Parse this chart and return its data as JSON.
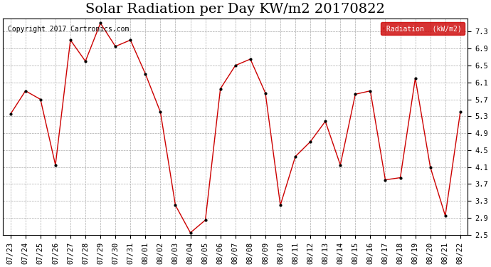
{
  "title": "Solar Radiation per Day KW/m2 20170822",
  "copyright": "Copyright 2017 Cartronics.com",
  "legend_label": "Radiation  (kW/m2)",
  "dates": [
    "07/23",
    "07/24",
    "07/25",
    "07/26",
    "07/27",
    "07/28",
    "07/29",
    "07/30",
    "07/31",
    "08/01",
    "08/02",
    "08/03",
    "08/04",
    "08/05",
    "08/06",
    "08/07",
    "08/08",
    "08/09",
    "08/10",
    "08/11",
    "08/12",
    "08/13",
    "08/14",
    "08/15",
    "08/16",
    "08/17",
    "08/18",
    "08/19",
    "08/20",
    "08/21",
    "08/22"
  ],
  "values": [
    5.35,
    5.9,
    5.7,
    4.15,
    7.1,
    6.6,
    7.5,
    6.95,
    7.1,
    6.3,
    5.4,
    3.2,
    2.55,
    2.85,
    5.95,
    6.5,
    6.65,
    5.85,
    3.2,
    4.35,
    4.7,
    5.18,
    4.15,
    5.82,
    5.9,
    3.8,
    3.85,
    6.2,
    4.1,
    2.95,
    5.4
  ],
  "line_color": "#cc0000",
  "marker_color": "#000000",
  "legend_bg_color": "#cc0000",
  "legend_text_color": "#ffffff",
  "background_color": "#ffffff",
  "grid_color": "#aaaaaa",
  "ylim": [
    2.5,
    7.6
  ],
  "yticks": [
    2.5,
    2.9,
    3.3,
    3.7,
    4.1,
    4.5,
    4.9,
    5.3,
    5.7,
    6.1,
    6.5,
    6.9,
    7.3
  ],
  "title_fontsize": 14,
  "tick_fontsize": 7.5,
  "copyright_fontsize": 7
}
